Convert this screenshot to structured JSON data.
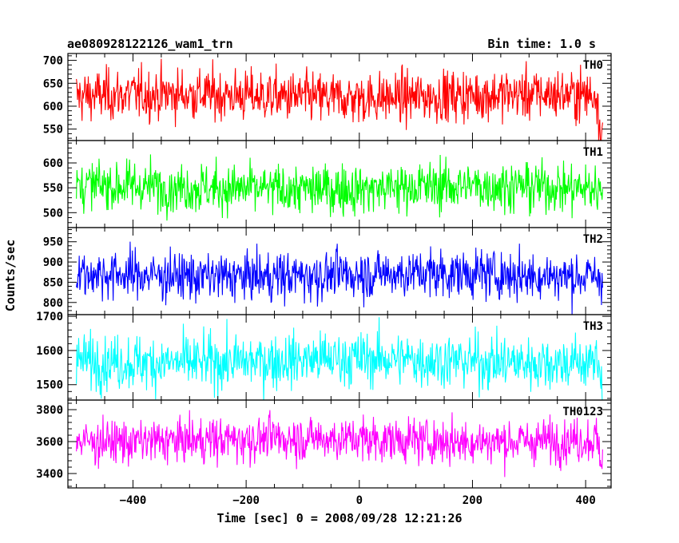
{
  "chart_data": {
    "type": "line",
    "title": "ae080928122126_wam1_trn",
    "subtitle": "Bin time: 1.0 s",
    "xlabel": "Time [sec] 0 = 2008/09/28 12:21:26",
    "ylabel": "Counts/sec",
    "xlim": [
      -515,
      445
    ],
    "x_range": [
      -500,
      430
    ],
    "x_step": 1,
    "xticks": [
      -400,
      -200,
      0,
      200,
      400
    ],
    "xtick_labels": [
      "−400",
      "−200",
      "0",
      "200",
      "400"
    ],
    "grid": false,
    "legend": "none",
    "panels": [
      {
        "name": "TH0",
        "color": "#ff0000",
        "ylim": [
          525,
          715
        ],
        "yticks": [
          550,
          600,
          650,
          700
        ],
        "ytick_labels": [
          "550",
          "600",
          "650",
          "700"
        ],
        "mean": 622,
        "std": 28,
        "end_dip": 40
      },
      {
        "name": "TH1",
        "color": "#00ff00",
        "ylim": [
          470,
          645
        ],
        "yticks": [
          500,
          550,
          600
        ],
        "ytick_labels": [
          "500",
          "550",
          "600"
        ],
        "mean": 550,
        "std": 25,
        "end_dip": 0
      },
      {
        "name": "TH2",
        "color": "#0000ff",
        "ylim": [
          770,
          985
        ],
        "yticks": [
          800,
          850,
          900,
          950
        ],
        "ytick_labels": [
          "800",
          "850",
          "900",
          "950"
        ],
        "mean": 868,
        "std": 30,
        "end_dip": 0
      },
      {
        "name": "TH3",
        "color": "#00ffff",
        "ylim": [
          1455,
          1705
        ],
        "yticks": [
          1500,
          1600,
          1700
        ],
        "ytick_labels": [
          "1500",
          "1600",
          "1700"
        ],
        "mean": 1570,
        "std": 40,
        "end_dip": 30
      },
      {
        "name": "TH0123",
        "color": "#ff00ff",
        "ylim": [
          3310,
          3860
        ],
        "yticks": [
          3400,
          3600,
          3800
        ],
        "ytick_labels": [
          "3400",
          "3600",
          "3800"
        ],
        "mean": 3610,
        "std": 70,
        "end_dip": 60
      }
    ]
  }
}
